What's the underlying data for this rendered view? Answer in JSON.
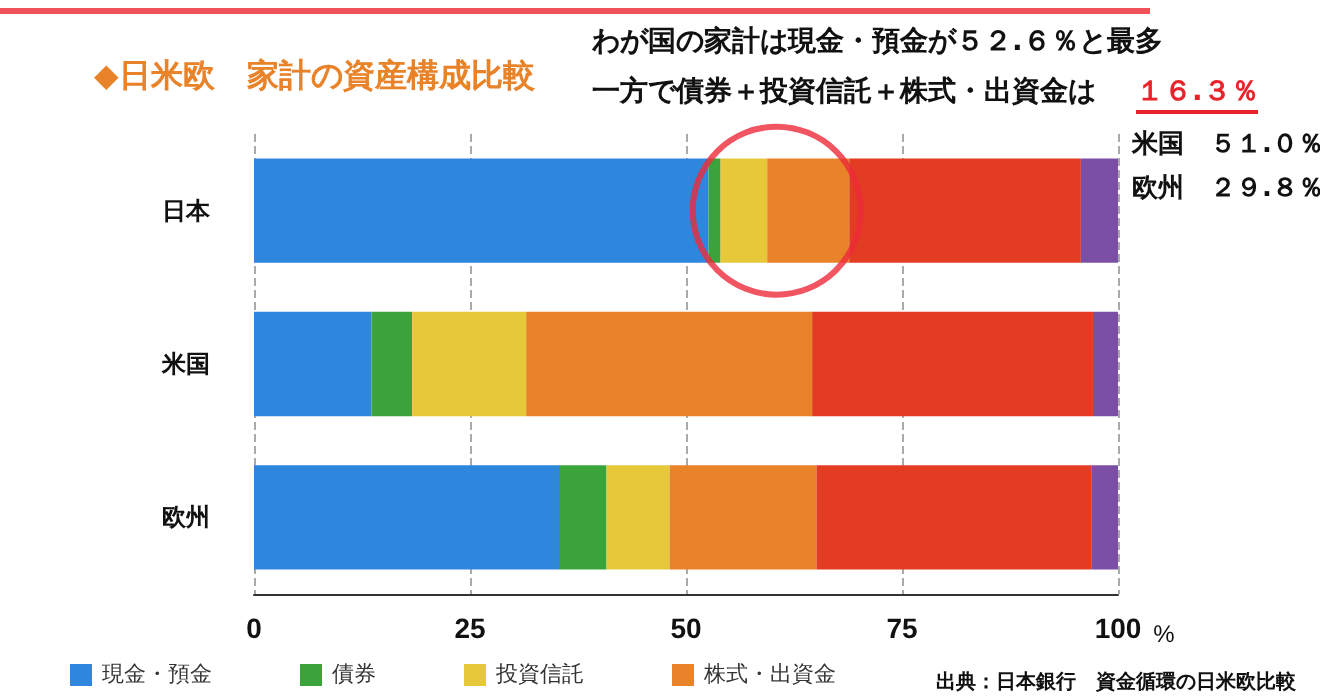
{
  "chart_data": {
    "type": "bar",
    "orientation": "horizontal",
    "stacked": true,
    "title": "◆日米欧　家計の資産構成比較",
    "xlabel": "%",
    "categories": [
      "日本",
      "米国",
      "欧州"
    ],
    "series": [
      {
        "name": "現金・預金",
        "color": "#2f86dd",
        "values": [
          52.6,
          13.6,
          35.3
        ]
      },
      {
        "name": "債券",
        "color": "#3aa43a",
        "values": [
          1.4,
          4.7,
          5.5
        ]
      },
      {
        "name": "投資信託",
        "color": "#e6c83a",
        "values": [
          5.4,
          13.2,
          7.3
        ]
      },
      {
        "name": "株式・出資金",
        "color": "#e8832a",
        "values": [
          9.5,
          33.1,
          17.0
        ]
      },
      {
        "color": "#e23c22",
        "values": [
          26.8,
          32.5,
          31.8
        ]
      },
      {
        "color": "#7c4fa6",
        "values": [
          4.3,
          2.9,
          3.1
        ]
      }
    ],
    "xlim": [
      0,
      100
    ],
    "xticks": [
      0,
      25,
      50,
      75,
      100
    ],
    "grid": "x",
    "legend": "bottom",
    "annotations": [
      "わが国の家計は現金・預金が５２.６％と最多",
      "一方で債券＋投資信託＋株式・出資金は",
      "１６.３％",
      "米国　５１.０％",
      "欧州　２９.８％",
      "出典：日本銀行　資金循環の日米欧比較"
    ]
  }
}
